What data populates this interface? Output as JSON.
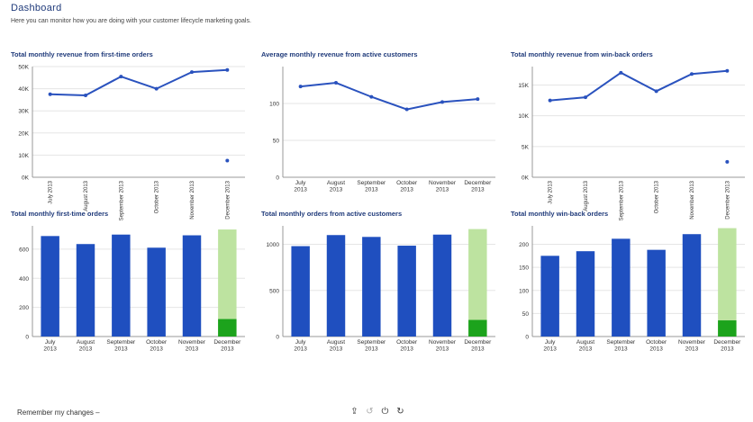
{
  "header": {
    "title": "Dashboard",
    "subtitle": "Here you can monitor how you are doing with your customer lifecycle marketing goals."
  },
  "footer": {
    "remember_label": "Remember my changes –",
    "icons": [
      "export-icon",
      "undo-icon",
      "power-icon",
      "refresh-icon"
    ]
  },
  "colors": {
    "line": "#2a52be",
    "bar": "#1f4fbf",
    "projected": "#bde3a0",
    "actual_partial": "#1ca31c",
    "grid": "#e5e5e5"
  },
  "chart_data": [
    {
      "id": "rev-first-time",
      "type": "line",
      "title": "Total monthly revenue from first-time orders",
      "categories": [
        "July 2013",
        "August 2013",
        "September 2013",
        "October 2013",
        "November 2013",
        "December 2013"
      ],
      "series": [
        {
          "values": [
            37500,
            37000,
            45500,
            40000,
            47500,
            48500
          ]
        }
      ],
      "extra_point": {
        "category": "December 2013",
        "value": 7500
      },
      "yticks": [
        0,
        10000,
        20000,
        30000,
        40000,
        50000
      ],
      "ytick_labels": [
        "0K",
        "10K",
        "20K",
        "30K",
        "40K",
        "50K"
      ],
      "ylim": [
        0,
        50000
      ],
      "tick_style": "rotated",
      "grid": true
    },
    {
      "id": "rev-active",
      "type": "line",
      "title": "Average monthly revenue from active customers",
      "categories": [
        "July 2013",
        "August 2013",
        "September 2013",
        "October 2013",
        "November 2013",
        "December 2013"
      ],
      "series": [
        {
          "values": [
            123,
            128,
            109,
            92,
            102,
            106
          ]
        }
      ],
      "yticks": [
        0,
        50,
        100
      ],
      "ytick_labels": [
        "0",
        "50",
        "100"
      ],
      "ylim": [
        0,
        150
      ],
      "tick_style": "stacked",
      "grid": true
    },
    {
      "id": "rev-win-back",
      "type": "line",
      "title": "Total monthly revenue from win-back orders",
      "categories": [
        "July 2013",
        "August 2013",
        "September 2013",
        "October 2013",
        "November 2013",
        "December 2013"
      ],
      "series": [
        {
          "values": [
            12500,
            13000,
            17000,
            14000,
            16800,
            17300
          ]
        }
      ],
      "extra_point": {
        "category": "December 2013",
        "value": 2500
      },
      "yticks": [
        0,
        5000,
        10000,
        15000
      ],
      "ytick_labels": [
        "0K",
        "5K",
        "10K",
        "15K"
      ],
      "ylim": [
        0,
        18000
      ],
      "tick_style": "rotated",
      "grid": true
    },
    {
      "id": "orders-first-time",
      "type": "bar",
      "title": "Total monthly first-time orders",
      "categories": [
        "July 2013",
        "August 2013",
        "September 2013",
        "October 2013",
        "November 2013",
        "December 2013"
      ],
      "values": [
        690,
        635,
        700,
        610,
        695,
        120
      ],
      "projected": {
        "category": "December 2013",
        "value": 735
      },
      "yticks": [
        0,
        200,
        400,
        600
      ],
      "ytick_labels": [
        "0",
        "200",
        "400",
        "600"
      ],
      "ylim": [
        0,
        760
      ],
      "tick_style": "stacked",
      "grid": true
    },
    {
      "id": "orders-active",
      "type": "bar",
      "title": "Total monthly orders from active customers",
      "categories": [
        "July 2013",
        "August 2013",
        "September 2013",
        "October 2013",
        "November 2013",
        "December 2013"
      ],
      "values": [
        980,
        1100,
        1080,
        985,
        1105,
        180
      ],
      "projected": {
        "category": "December 2013",
        "value": 1165
      },
      "yticks": [
        0,
        500,
        1000
      ],
      "ytick_labels": [
        "0",
        "500",
        "1000"
      ],
      "ylim": [
        0,
        1200
      ],
      "tick_style": "stacked",
      "grid": true
    },
    {
      "id": "orders-win-back",
      "type": "bar",
      "title": "Total monthly win-back orders",
      "categories": [
        "July 2013",
        "August 2013",
        "September 2013",
        "October 2013",
        "November 2013",
        "December 2013"
      ],
      "values": [
        175,
        185,
        212,
        188,
        222,
        35
      ],
      "projected": {
        "category": "December 2013",
        "value": 235
      },
      "yticks": [
        0,
        50,
        100,
        150,
        200
      ],
      "ytick_labels": [
        "0",
        "50",
        "100",
        "150",
        "200"
      ],
      "ylim": [
        0,
        240
      ],
      "tick_style": "stacked",
      "grid": true
    }
  ]
}
